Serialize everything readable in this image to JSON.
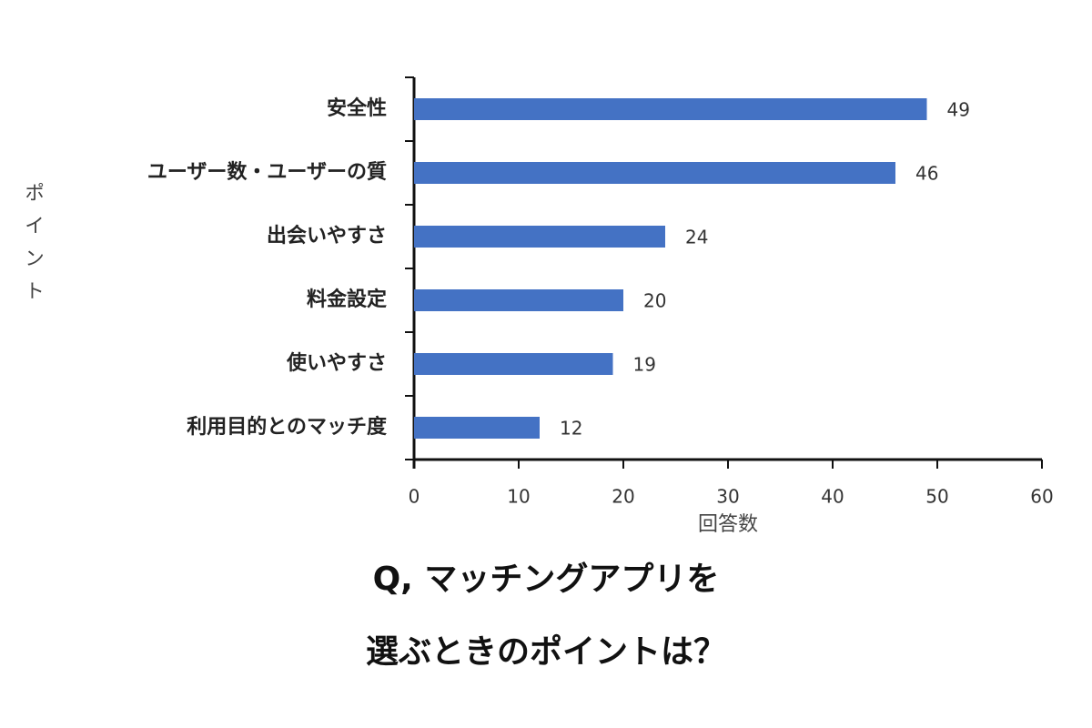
{
  "chart_data": {
    "type": "barh",
    "title": "Q, マッチングアプリを",
    "subtitle": "選ぶときのポイントは？",
    "x_label": "回答数",
    "y_label": "ポイント",
    "categories": [
      "安全性",
      "ユーザー数・ユーザーの質",
      "出会いやすさ",
      "料金設定",
      "使いやすさ",
      "利用目的とのマッチ度"
    ],
    "values": [
      49,
      46,
      24,
      20,
      19,
      12
    ],
    "color": "#4472c4",
    "xlim": [
      0,
      60
    ],
    "xticks": [
      0,
      10,
      20,
      30,
      40,
      50,
      60
    ]
  }
}
